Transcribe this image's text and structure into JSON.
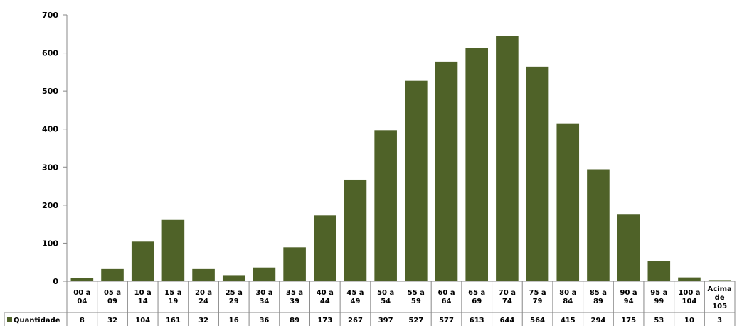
{
  "chart_data": {
    "type": "bar",
    "categories": [
      [
        "00 a",
        "04"
      ],
      [
        "05 a",
        "09"
      ],
      [
        "10 a",
        "14"
      ],
      [
        "15 a",
        "19"
      ],
      [
        "20 a",
        "24"
      ],
      [
        "25 a",
        "29"
      ],
      [
        "30 a",
        "34"
      ],
      [
        "35 a",
        "39"
      ],
      [
        "40 a",
        "44"
      ],
      [
        "45 a",
        "49"
      ],
      [
        "50 a",
        "54"
      ],
      [
        "55 a",
        "59"
      ],
      [
        "60 a",
        "64"
      ],
      [
        "65 a",
        "69"
      ],
      [
        "70 a",
        "74"
      ],
      [
        "75 a",
        "79"
      ],
      [
        "80 a",
        "84"
      ],
      [
        "85 a",
        "89"
      ],
      [
        "90 a",
        "94"
      ],
      [
        "95 a",
        "99"
      ],
      [
        "100 a",
        "104"
      ],
      [
        "Acima",
        "de",
        "105"
      ]
    ],
    "series": [
      {
        "name": "Quantidade",
        "values": [
          8,
          32,
          104,
          161,
          32,
          16,
          36,
          89,
          173,
          267,
          397,
          527,
          577,
          613,
          644,
          564,
          415,
          294,
          175,
          53,
          10,
          3
        ]
      }
    ],
    "yticks": [
      0,
      100,
      200,
      300,
      400,
      500,
      600,
      700
    ],
    "ylim": [
      0,
      700
    ],
    "grid": false,
    "legend": "data-table-left",
    "bar_color": "#4f6228",
    "title": "",
    "xlabel": "",
    "ylabel": ""
  }
}
